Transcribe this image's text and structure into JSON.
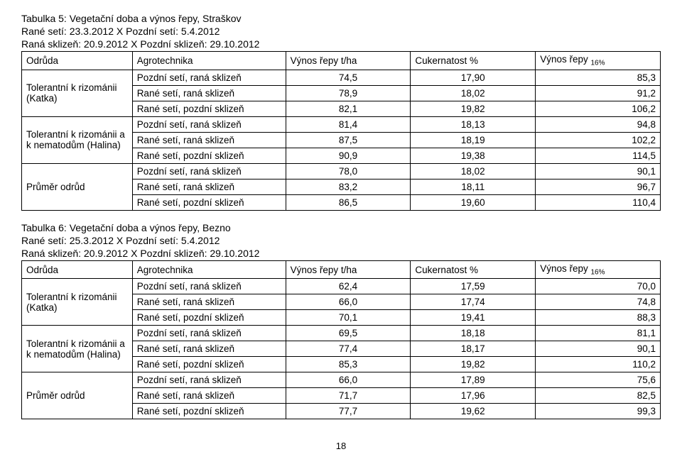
{
  "table5": {
    "title": "Tabulka 5: Vegetační doba a výnos řepy, Straškov",
    "line2": "Rané setí: 23.3.2012 X Pozdní setí: 5.4.2012",
    "line3": "Raná sklizeň: 20.9.2012 X Pozdní sklizeň: 29.10.2012",
    "headers": {
      "odruda": "Odrůda",
      "agro": "Agrotechnika",
      "vynos": "Výnos řepy t/ha",
      "cukr": "Cukernatost %",
      "vynos16_pre": "Výnos řepy ",
      "vynos16_sub": "16%"
    },
    "groups": [
      {
        "label": "Tolerantní k rizománii (Katka)",
        "rows": [
          {
            "agro": "Pozdní setí, raná sklizeň",
            "v1": "74,5",
            "v2": "17,90",
            "v3": "85,3"
          },
          {
            "agro": "Rané setí, raná sklizeň",
            "v1": "78,9",
            "v2": "18,02",
            "v3": "91,2"
          },
          {
            "agro": "Rané setí, pozdní sklizeň",
            "v1": "82,1",
            "v2": "19,82",
            "v3": "106,2"
          }
        ]
      },
      {
        "label": "Tolerantní k rizománii a k nematodům (Halina)",
        "rows": [
          {
            "agro": "Pozdní setí, raná sklizeň",
            "v1": "81,4",
            "v2": "18,13",
            "v3": "94,8"
          },
          {
            "agro": "Rané setí, raná sklizeň",
            "v1": "87,5",
            "v2": "18,19",
            "v3": "102,2"
          },
          {
            "agro": "Rané setí, pozdní sklizeň",
            "v1": "90,9",
            "v2": "19,38",
            "v3": "114,5"
          }
        ]
      },
      {
        "label": "Průměr odrůd",
        "rows": [
          {
            "agro": "Pozdní setí, raná sklizeň",
            "v1": "78,0",
            "v2": "18,02",
            "v3": "90,1"
          },
          {
            "agro": "Rané setí, raná sklizeň",
            "v1": "83,2",
            "v2": "18,11",
            "v3": "96,7"
          },
          {
            "agro": "Rané setí, pozdní sklizeň",
            "v1": "86,5",
            "v2": "19,60",
            "v3": "110,4"
          }
        ]
      }
    ]
  },
  "table6": {
    "title": "Tabulka 6: Vegetační doba a výnos řepy, Bezno",
    "line2": "Rané setí: 25.3.2012 X Pozdní setí: 5.4.2012",
    "line3": "Raná sklizeň: 20.9.2012 X Pozdní sklizeň: 29.10.2012",
    "groups": [
      {
        "label": "Tolerantní k rizománii (Katka)",
        "rows": [
          {
            "agro": "Pozdní setí, raná sklizeň",
            "v1": "62,4",
            "v2": "17,59",
            "v3": "70,0"
          },
          {
            "agro": "Rané setí, raná sklizeň",
            "v1": "66,0",
            "v2": "17,74",
            "v3": "74,8"
          },
          {
            "agro": "Rané setí, pozdní sklizeň",
            "v1": "70,1",
            "v2": "19,41",
            "v3": "88,3"
          }
        ]
      },
      {
        "label": "Tolerantní k rizománii a k nematodům (Halina)",
        "rows": [
          {
            "agro": "Pozdní setí, raná sklizeň",
            "v1": "69,5",
            "v2": "18,18",
            "v3": "81,1"
          },
          {
            "agro": "Rané setí, raná sklizeň",
            "v1": "77,4",
            "v2": "18,17",
            "v3": "90,1"
          },
          {
            "agro": "Rané setí, pozdní sklizeň",
            "v1": "85,3",
            "v2": "19,82",
            "v3": "110,2"
          }
        ]
      },
      {
        "label": "Průměr odrůd",
        "rows": [
          {
            "agro": "Pozdní setí, raná sklizeň",
            "v1": "66,0",
            "v2": "17,89",
            "v3": "75,6"
          },
          {
            "agro": "Rané setí, raná sklizeň",
            "v1": "71,7",
            "v2": "17,96",
            "v3": "82,5"
          },
          {
            "agro": "Rané setí, pozdní sklizeň",
            "v1": "77,7",
            "v2": "19,62",
            "v3": "99,3"
          }
        ]
      }
    ]
  },
  "page_number": "18"
}
